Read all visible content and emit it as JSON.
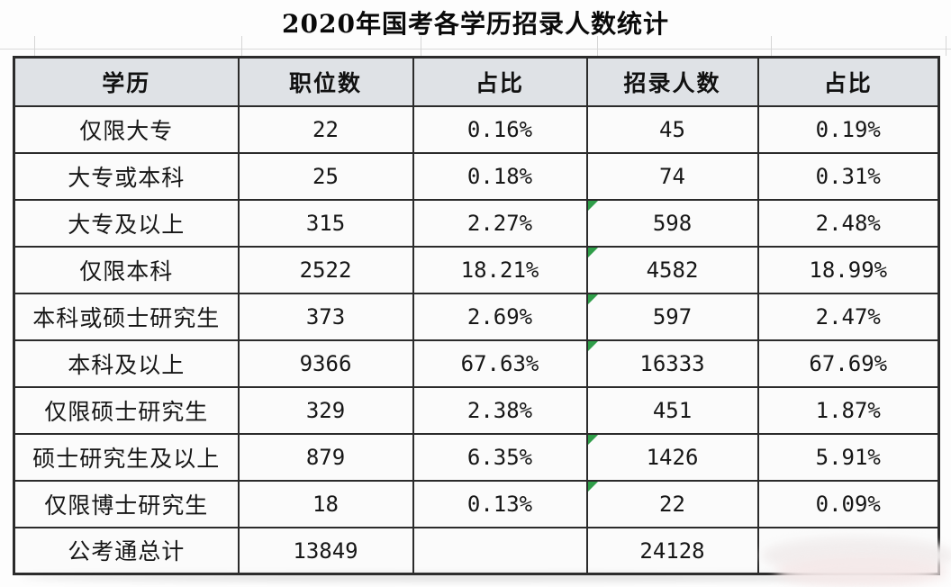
{
  "title": "2020年国考各学历招录人数统计",
  "chart_data": {
    "type": "table",
    "title": "2020年国考各学历招录人数统计",
    "columns": [
      "学历",
      "职位数",
      "占比",
      "招录人数",
      "占比"
    ],
    "rows": [
      [
        "仅限大专",
        "22",
        "0.16%",
        "45",
        "0.19%"
      ],
      [
        "大专或本科",
        "25",
        "0.18%",
        "74",
        "0.31%"
      ],
      [
        "大专及以上",
        "315",
        "2.27%",
        "598",
        "2.48%"
      ],
      [
        "仅限本科",
        "2522",
        "18.21%",
        "4582",
        "18.99%"
      ],
      [
        "本科或硕士研究生",
        "373",
        "2.69%",
        "597",
        "2.47%"
      ],
      [
        "本科及以上",
        "9366",
        "67.63%",
        "16333",
        "67.69%"
      ],
      [
        "仅限硕士研究生",
        "329",
        "2.38%",
        "451",
        "1.87%"
      ],
      [
        "硕士研究生及以上",
        "879",
        "6.35%",
        "1426",
        "5.91%"
      ],
      [
        "仅限博士研究生",
        "18",
        "0.13%",
        "22",
        "0.09%"
      ],
      [
        "公考通总计",
        "13849",
        "",
        "24128",
        ""
      ]
    ]
  },
  "table": {
    "headers": [
      "学历",
      "职位数",
      "占比",
      "招录人数",
      "占比"
    ],
    "rows": [
      {
        "cells": [
          "仅限大专",
          "22",
          "0.16%",
          "45",
          "0.19%"
        ],
        "marker": false
      },
      {
        "cells": [
          "大专或本科",
          "25",
          "0.18%",
          "74",
          "0.31%"
        ],
        "marker": false
      },
      {
        "cells": [
          "大专及以上",
          "315",
          "2.27%",
          "598",
          "2.48%"
        ],
        "marker": true
      },
      {
        "cells": [
          "仅限本科",
          "2522",
          "18.21%",
          "4582",
          "18.99%"
        ],
        "marker": true
      },
      {
        "cells": [
          "本科或硕士研究生",
          "373",
          "2.69%",
          "597",
          "2.47%"
        ],
        "marker": true
      },
      {
        "cells": [
          "本科及以上",
          "9366",
          "67.63%",
          "16333",
          "67.69%"
        ],
        "marker": true
      },
      {
        "cells": [
          "仅限硕士研究生",
          "329",
          "2.38%",
          "451",
          "1.87%"
        ],
        "marker": false
      },
      {
        "cells": [
          "硕士研究生及以上",
          "879",
          "6.35%",
          "1426",
          "5.91%"
        ],
        "marker": true
      },
      {
        "cells": [
          "仅限博士研究生",
          "18",
          "0.13%",
          "22",
          "0.09%"
        ],
        "marker": true
      },
      {
        "cells": [
          "公考通总计",
          "13849",
          "",
          "24128",
          ""
        ],
        "marker": false
      }
    ],
    "marker_column": "招录人数"
  },
  "colors": {
    "header_bg": "#dfe2e6",
    "cell_bg": "#fbfbfb",
    "border": "#2b2b2b",
    "marker_green": "#2f9e49",
    "title_text": "#0a0a0a"
  }
}
